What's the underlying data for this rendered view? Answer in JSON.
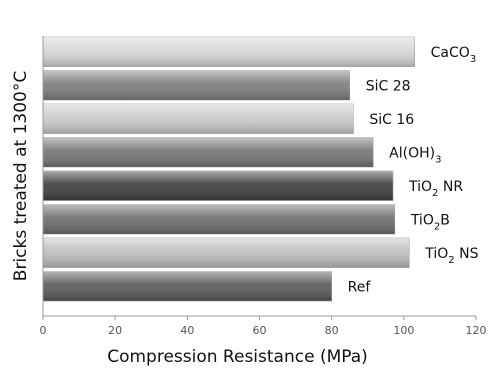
{
  "chart_data": {
    "type": "bar",
    "orientation": "horizontal",
    "categories": [
      "CaCO3",
      "SiC 28",
      "SiC 16",
      "Al(OH)3",
      "TiO2 NR",
      "TiO2B",
      "TiO2 NS",
      "Ref"
    ],
    "category_labels": [
      {
        "text": "CaCO",
        "sub": "3",
        "after": ""
      },
      {
        "text": "SiC 28",
        "sub": "",
        "after": ""
      },
      {
        "text": "SiC 16",
        "sub": "",
        "after": ""
      },
      {
        "text": "Al(OH)",
        "sub": "3",
        "after": ""
      },
      {
        "text": "TiO",
        "sub": "2",
        "after": " NR"
      },
      {
        "text": "TiO",
        "sub": "2",
        "after": "B"
      },
      {
        "text": "TiO",
        "sub": "2",
        "after": " NS"
      },
      {
        "text": "Ref",
        "sub": "",
        "after": ""
      }
    ],
    "values": [
      103,
      85,
      86,
      91.5,
      97,
      97.5,
      101.5,
      80
    ],
    "bar_colors": [
      "#d6d6d6",
      "#7e7e7e",
      "#cbcbcb",
      "#767676",
      "#3e3e3e",
      "#6e6e6e",
      "#bebebe",
      "#5a5a5a"
    ],
    "xlabel": "Compression Resistance (MPa)",
    "ylabel": "Bricks treated at 1300°C",
    "xlim": [
      0,
      120
    ],
    "xticks": [
      0,
      20,
      40,
      60,
      80,
      100,
      120
    ],
    "grid": false,
    "legend": "none"
  }
}
